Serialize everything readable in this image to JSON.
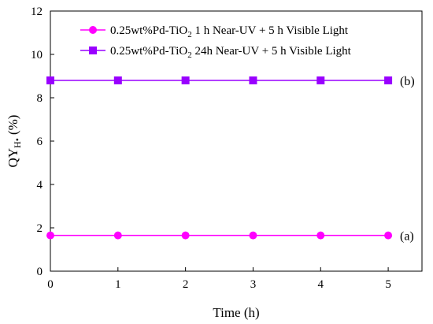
{
  "chart_data": {
    "type": "line",
    "title": "",
    "xlabel": "Time (h)",
    "ylabel": {
      "main": "QY",
      "sub": "H•",
      "unit": "(%)"
    },
    "xlim": [
      0,
      5.5
    ],
    "ylim": [
      0,
      12
    ],
    "x_ticks": [
      0,
      1,
      2,
      3,
      4,
      5
    ],
    "y_ticks": [
      0,
      2,
      4,
      6,
      8,
      10,
      12
    ],
    "grid": false,
    "legend_position": "top-right",
    "x": [
      0,
      1,
      2,
      3,
      4,
      5
    ],
    "series": [
      {
        "name": {
          "pre": "0.25wt%Pd-TiO",
          "sub": "2",
          "post": "  1 h Near-UV + 5 h Visible Light"
        },
        "values": [
          1.65,
          1.65,
          1.65,
          1.65,
          1.65,
          1.65
        ],
        "color": "#ff00ff",
        "marker": "circle",
        "annotation": "(a)"
      },
      {
        "name": {
          "pre": "0.25wt%Pd-TiO",
          "sub": "2",
          "post": " 24h Near-UV + 5 h Visible Light"
        },
        "values": [
          8.8,
          8.8,
          8.8,
          8.8,
          8.8,
          8.8
        ],
        "color": "#9900ff",
        "marker": "square",
        "annotation": "(b)"
      }
    ]
  }
}
